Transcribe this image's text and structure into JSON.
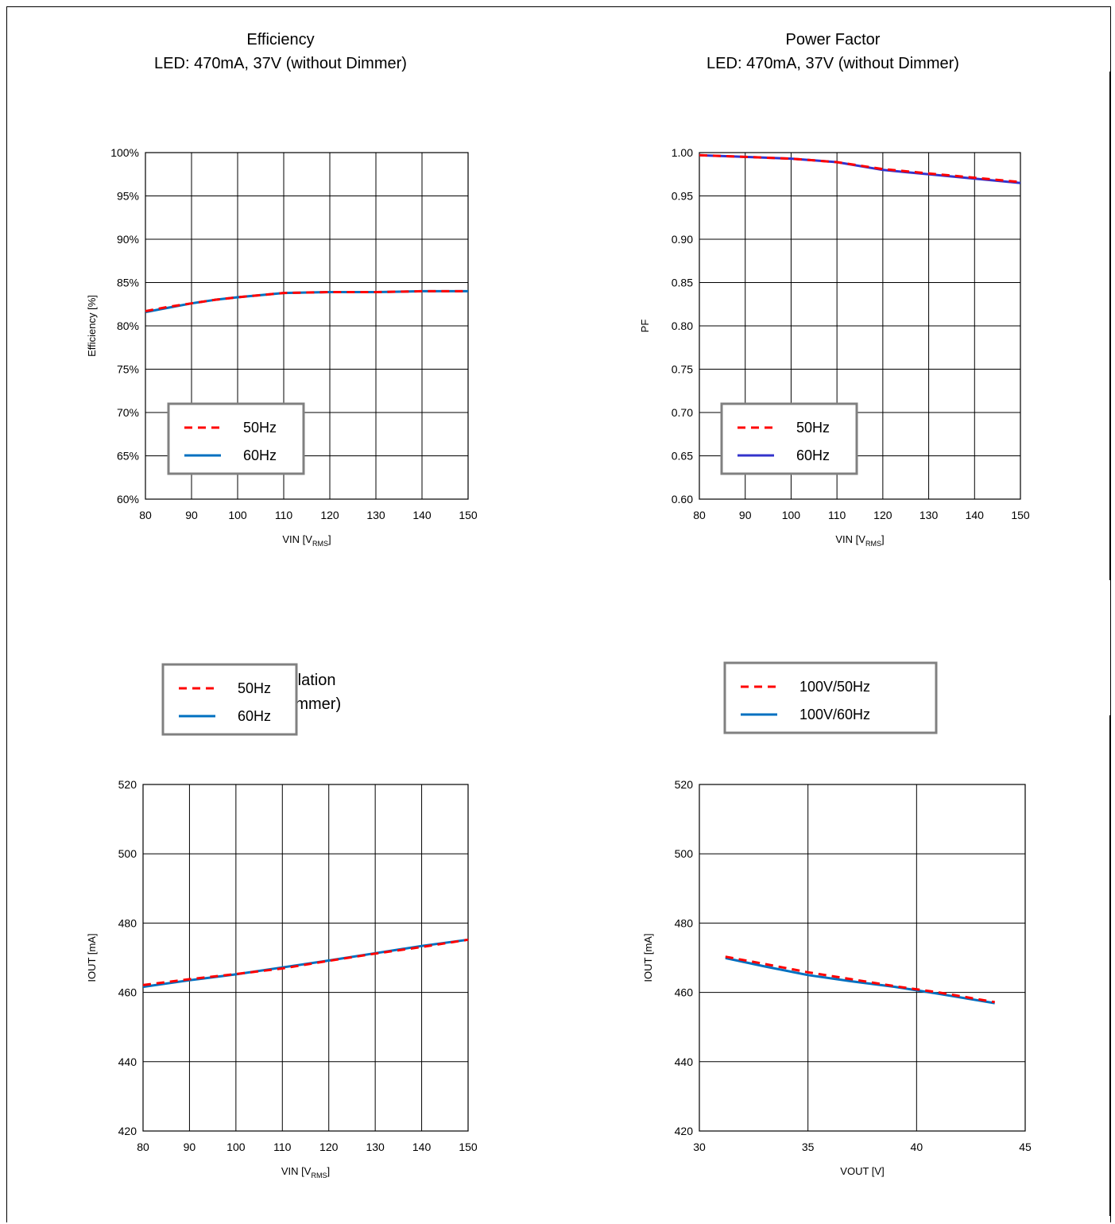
{
  "chart_data": [
    {
      "id": "efficiency",
      "type": "line",
      "title_lines": [
        "Efficiency",
        "LED: 470mA, 37V    (without Dimmer)"
      ],
      "xlabel": "VIN [V",
      "xlabel_sub": "RMS",
      "xlabel_tail": "]",
      "ylabel": "Efficiency [%]",
      "xlim": [
        80,
        150
      ],
      "ylim": [
        60,
        100
      ],
      "xticks": [
        80,
        90,
        100,
        110,
        120,
        130,
        140,
        150
      ],
      "yticks": [
        60,
        65,
        70,
        75,
        80,
        85,
        90,
        95,
        100
      ],
      "ytick_labels": [
        "60%",
        "65%",
        "70%",
        "75%",
        "80%",
        "85%",
        "90%",
        "95%",
        "100%"
      ],
      "legend_pos": "bottom-left",
      "series": [
        {
          "name": "50Hz",
          "color": "#ff0000",
          "dash": true,
          "x": [
            80,
            85,
            90,
            95,
            100,
            110,
            120,
            130,
            140,
            150
          ],
          "y": [
            81.7,
            82.2,
            82.6,
            83.0,
            83.3,
            83.8,
            83.9,
            83.9,
            84.0,
            84.0
          ]
        },
        {
          "name": "60Hz",
          "color": "#0070c0",
          "dash": false,
          "x": [
            80,
            85,
            90,
            95,
            100,
            110,
            120,
            130,
            140,
            150
          ],
          "y": [
            81.6,
            82.1,
            82.6,
            83.0,
            83.3,
            83.8,
            83.9,
            83.9,
            84.0,
            84.0
          ]
        }
      ]
    },
    {
      "id": "power-factor",
      "type": "line",
      "title_lines": [
        "Power Factor",
        "LED: 470mA, 37V    (without Dimmer)"
      ],
      "xlabel": "VIN [V",
      "xlabel_sub": "RMS",
      "xlabel_tail": "]",
      "ylabel": "PF",
      "xlim": [
        80,
        150
      ],
      "ylim": [
        0.6,
        1.0
      ],
      "xticks": [
        80,
        90,
        100,
        110,
        120,
        130,
        140,
        150
      ],
      "yticks": [
        0.6,
        0.65,
        0.7,
        0.75,
        0.8,
        0.85,
        0.9,
        0.95,
        1.0
      ],
      "ytick_labels": [
        "0.60",
        "0.65",
        "0.70",
        "0.75",
        "0.80",
        "0.85",
        "0.90",
        "0.95",
        "1.00"
      ],
      "legend_pos": "bottom-left",
      "series": [
        {
          "name": "50Hz",
          "color": "#ff0000",
          "dash": true,
          "x": [
            80,
            90,
            100,
            110,
            120,
            130,
            140,
            150
          ],
          "y": [
            0.997,
            0.995,
            0.993,
            0.989,
            0.981,
            0.976,
            0.971,
            0.966
          ]
        },
        {
          "name": "60Hz",
          "color": "#3333cc",
          "dash": false,
          "x": [
            80,
            90,
            100,
            110,
            120,
            130,
            140,
            150
          ],
          "y": [
            0.997,
            0.995,
            0.993,
            0.989,
            0.98,
            0.975,
            0.97,
            0.965
          ]
        }
      ]
    },
    {
      "id": "line-regulation",
      "type": "line",
      "title_lines": [
        "Line Regulation",
        "(without Dimmer)"
      ],
      "xlabel": "VIN [V",
      "xlabel_sub": "RMS",
      "xlabel_tail": "]",
      "ylabel": "IOUT [mA]",
      "xlim": [
        80,
        150
      ],
      "ylim": [
        420,
        520
      ],
      "xticks": [
        80,
        90,
        100,
        110,
        120,
        130,
        140,
        150
      ],
      "yticks": [
        420,
        440,
        460,
        480,
        500,
        520
      ],
      "ytick_labels": [
        "420",
        "440",
        "460",
        "480",
        "500",
        "520"
      ],
      "legend_pos": "top-left",
      "series": [
        {
          "name": "50Hz",
          "color": "#ff0000",
          "dash": true,
          "x": [
            80,
            90,
            100,
            110,
            120,
            130,
            140,
            150
          ],
          "y": [
            462.1,
            463.8,
            465.3,
            466.9,
            469.1,
            471.2,
            473.1,
            475.2
          ]
        },
        {
          "name": "60Hz",
          "color": "#0070c0",
          "dash": false,
          "x": [
            80,
            90,
            100,
            110,
            120,
            130,
            140,
            150
          ],
          "y": [
            461.6,
            463.5,
            465.2,
            467.2,
            469.2,
            471.3,
            473.4,
            475.2
          ]
        }
      ]
    },
    {
      "id": "load-regulation",
      "type": "line",
      "title_lines": [
        "Load Regulation",
        "(without Dimmer)"
      ],
      "xlabel": "VOUT [V]",
      "xlabel_sub": "",
      "xlabel_tail": "",
      "ylabel": "IOUT [mA]",
      "xlim": [
        30,
        45
      ],
      "ylim": [
        420,
        520
      ],
      "xticks": [
        30,
        35,
        40,
        45
      ],
      "yticks": [
        420,
        440,
        460,
        480,
        500,
        520
      ],
      "ytick_labels": [
        "420",
        "440",
        "460",
        "480",
        "500",
        "520"
      ],
      "legend_pos": "top-left",
      "series": [
        {
          "name": "100V/50Hz",
          "color": "#ff0000",
          "dash": true,
          "x": [
            31.2,
            33,
            35,
            37,
            39,
            41,
            43.6
          ],
          "y": [
            470.3,
            468.2,
            465.8,
            463.8,
            461.8,
            460.0,
            457.2
          ]
        },
        {
          "name": "100V/60Hz",
          "color": "#0070c0",
          "dash": false,
          "x": [
            31.2,
            33,
            35,
            37,
            39,
            41,
            43.6
          ],
          "y": [
            469.9,
            467.5,
            465.0,
            463.2,
            461.6,
            459.6,
            456.9
          ]
        }
      ]
    }
  ]
}
